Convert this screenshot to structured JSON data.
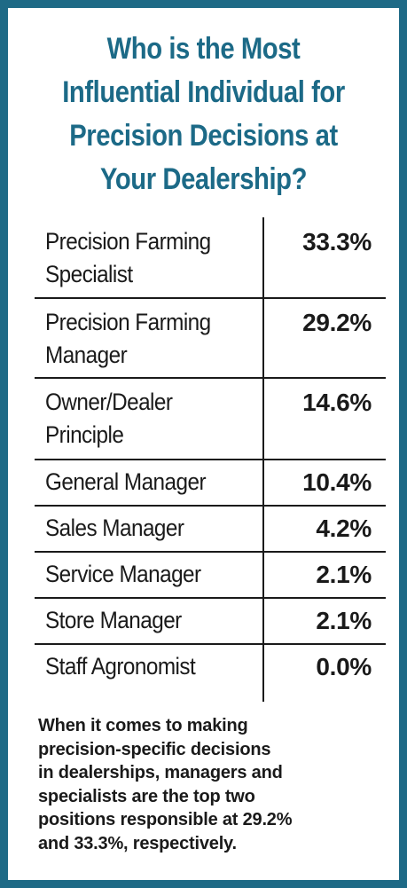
{
  "chart_data": {
    "type": "table",
    "title_lines": [
      "Who is the Most",
      "Influential Individual for",
      "Precision Decisions at",
      "Your Dealership?"
    ],
    "rows": [
      {
        "label_lines": [
          "Precision Farming",
          "Specialist"
        ],
        "value": "33.3%"
      },
      {
        "label_lines": [
          "Precision Farming",
          "Manager"
        ],
        "value": "29.2%"
      },
      {
        "label_lines": [
          "Owner/Dealer",
          "Principle"
        ],
        "value": "14.6%"
      },
      {
        "label_lines": [
          "General Manager"
        ],
        "value": "10.4%"
      },
      {
        "label_lines": [
          "Sales Manager"
        ],
        "value": "4.2%"
      },
      {
        "label_lines": [
          "Service Manager"
        ],
        "value": "2.1%"
      },
      {
        "label_lines": [
          "Store Manager"
        ],
        "value": "2.1%"
      },
      {
        "label_lines": [
          "Staff Agronomist"
        ],
        "value": "0.0%"
      }
    ],
    "caption_lines": [
      "When it comes to making",
      "precision-specific decisions",
      "in dealerships, managers and",
      "specialists are the top two",
      "positions responsible at 29.2%",
      "and 33.3%, respectively."
    ]
  },
  "colors": {
    "border": "#1e6a86",
    "title": "#1c6a87",
    "text": "#1a1a1a",
    "background": "#ffffff"
  }
}
